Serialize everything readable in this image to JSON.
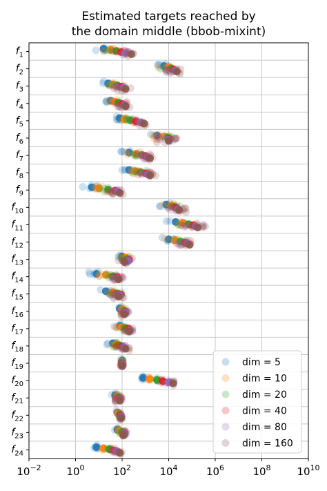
{
  "chart_data": {
    "type": "scatter",
    "title": "Estimated targets reached by\nthe domain middle (bbob-mixint)",
    "title_lines": [
      "Estimated targets reached by",
      "the domain middle (bbob-mixint)"
    ],
    "xscale": "log",
    "xlim_exp": [
      -2,
      10
    ],
    "xticks": [
      {
        "base": "10",
        "exp": "−2"
      },
      {
        "base": "10",
        "exp": "0"
      },
      {
        "base": "10",
        "exp": "2"
      },
      {
        "base": "10",
        "exp": "4"
      },
      {
        "base": "10",
        "exp": "6"
      },
      {
        "base": "10",
        "exp": "8"
      },
      {
        "base": "10",
        "exp": "10"
      }
    ],
    "grid": true,
    "legend_position": "bottom-right",
    "functions": [
      {
        "base": "f",
        "sub": "1"
      },
      {
        "base": "f",
        "sub": "2"
      },
      {
        "base": "f",
        "sub": "3"
      },
      {
        "base": "f",
        "sub": "4"
      },
      {
        "base": "f",
        "sub": "5"
      },
      {
        "base": "f",
        "sub": "6"
      },
      {
        "base": "f",
        "sub": "7"
      },
      {
        "base": "f",
        "sub": "8"
      },
      {
        "base": "f",
        "sub": "9"
      },
      {
        "base": "f",
        "sub": "10"
      },
      {
        "base": "f",
        "sub": "11"
      },
      {
        "base": "f",
        "sub": "12"
      },
      {
        "base": "f",
        "sub": "13"
      },
      {
        "base": "f",
        "sub": "14"
      },
      {
        "base": "f",
        "sub": "15"
      },
      {
        "base": "f",
        "sub": "16"
      },
      {
        "base": "f",
        "sub": "17"
      },
      {
        "base": "f",
        "sub": "18"
      },
      {
        "base": "f",
        "sub": "19"
      },
      {
        "base": "f",
        "sub": "20"
      },
      {
        "base": "f",
        "sub": "21"
      },
      {
        "base": "f",
        "sub": "22"
      },
      {
        "base": "f",
        "sub": "23"
      },
      {
        "base": "f",
        "sub": "24"
      }
    ],
    "series": [
      {
        "name": "dim = 5",
        "color": "#1f77b4"
      },
      {
        "name": "dim = 10",
        "color": "#ff7f0e"
      },
      {
        "name": "dim = 20",
        "color": "#2ca02c"
      },
      {
        "name": "dim = 40",
        "color": "#d62728"
      },
      {
        "name": "dim = 80",
        "color": "#9467bd"
      },
      {
        "name": "dim = 160",
        "color": "#8c564b"
      }
    ],
    "final_points_log10": [
      [
        1.2,
        1.5,
        1.75,
        1.95,
        2.15,
        2.4
      ],
      [
        3.8,
        4.0,
        4.1,
        4.2,
        4.3,
        4.35
      ],
      [
        1.4,
        1.6,
        1.8,
        1.95,
        2.05,
        2.15
      ],
      [
        1.5,
        1.7,
        1.85,
        2.0,
        2.1,
        2.15
      ],
      [
        1.9,
        2.1,
        2.35,
        2.6,
        2.8,
        2.95
      ],
      [
        3.5,
        3.8,
        3.95,
        4.0,
        4.0,
        4.0
      ],
      [
        2.3,
        2.6,
        2.85,
        3.0,
        3.1,
        3.2
      ],
      [
        2.3,
        2.55,
        2.8,
        3.0,
        3.1,
        3.2
      ],
      [
        0.7,
        1.0,
        1.4,
        1.7,
        1.8,
        1.9
      ],
      [
        3.9,
        4.1,
        4.25,
        4.35,
        4.4,
        4.45
      ],
      [
        4.3,
        4.6,
        4.85,
        5.05,
        5.15,
        5.25
      ],
      [
        4.0,
        4.25,
        4.5,
        4.7,
        4.8,
        4.9
      ],
      [
        2.0,
        2.15,
        2.25,
        2.3,
        2.25,
        2.1
      ],
      [
        0.9,
        1.3,
        1.6,
        1.8,
        1.85,
        1.85
      ],
      [
        1.3,
        1.6,
        1.8,
        1.95,
        1.9,
        1.85
      ],
      [
        1.9,
        2.0,
        2.1,
        2.15,
        2.15,
        2.1
      ],
      [
        1.9,
        2.0,
        2.15,
        2.3,
        2.35,
        2.3
      ],
      [
        1.6,
        1.75,
        1.9,
        2.0,
        2.1,
        2.15
      ],
      [
        2.0,
        2.0,
        2.0,
        2.0,
        2.0,
        2.0
      ],
      [
        2.9,
        3.2,
        3.5,
        3.75,
        4.0,
        4.2
      ],
      [
        1.7,
        1.8,
        1.85,
        1.9,
        1.9,
        1.9
      ],
      [
        1.8,
        1.85,
        1.9,
        1.95,
        1.95,
        1.95
      ],
      [
        1.8,
        1.9,
        2.0,
        2.1,
        2.1,
        2.05
      ],
      [
        0.9,
        1.2,
        1.45,
        1.65,
        1.8,
        1.9
      ]
    ],
    "spread_log10": [
      0.35,
      0.35,
      0.3,
      0.25,
      0.15,
      0.4,
      0.3,
      0.3,
      0.3,
      0.35,
      0.45,
      0.35,
      0.2,
      0.25,
      0.25,
      0.15,
      0.2,
      0.2,
      0.05,
      0.05,
      0.15,
      0.05,
      0.1,
      0.1
    ]
  }
}
